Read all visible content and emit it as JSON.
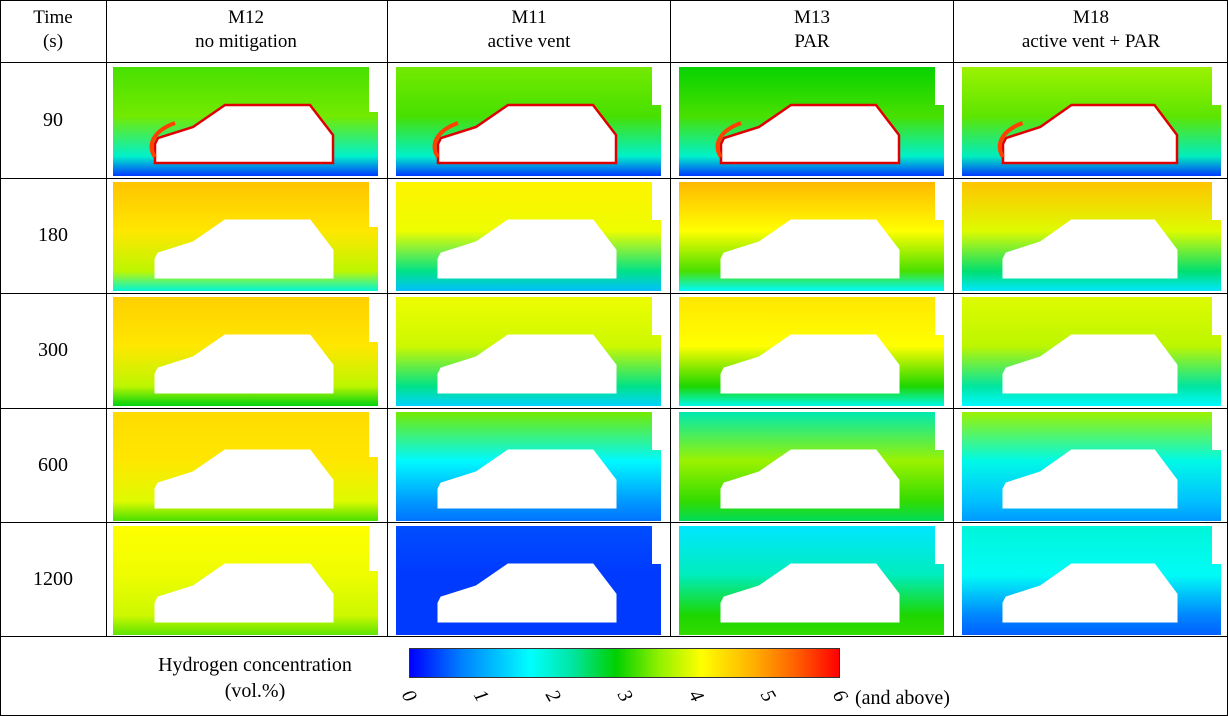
{
  "columns": [
    {
      "id": "time",
      "line1": "Time",
      "line2": "(s)"
    },
    {
      "id": "m12",
      "line1": "M12",
      "line2": "no mitigation"
    },
    {
      "id": "m11",
      "line1": "M11",
      "line2": "active vent"
    },
    {
      "id": "m13",
      "line1": "M13",
      "line2": "PAR"
    },
    {
      "id": "m18",
      "line1": "M18",
      "line2": "active vent + PAR"
    }
  ],
  "rows": [
    {
      "time": "90",
      "levels": [
        {
          "top": 3.0,
          "mid": 3.2,
          "bot": 1.7,
          "floor": 0.3,
          "plume": true
        },
        {
          "top": 3.2,
          "mid": 3.0,
          "bot": 1.7,
          "floor": 0.3,
          "plume": true
        },
        {
          "top": 2.7,
          "mid": 3.0,
          "bot": 1.7,
          "floor": 0.3,
          "plume": true
        },
        {
          "top": 3.4,
          "mid": 3.1,
          "bot": 1.8,
          "floor": 0.3,
          "plume": true
        }
      ]
    },
    {
      "time": "180",
      "levels": [
        {
          "top": 4.5,
          "mid": 4.2,
          "bot": 3.6,
          "floor": 1.6
        },
        {
          "top": 4.1,
          "mid": 3.9,
          "bot": 2.1,
          "floor": 1.0
        },
        {
          "top": 4.6,
          "mid": 4.0,
          "bot": 3.0,
          "floor": 1.3
        },
        {
          "top": 4.5,
          "mid": 3.8,
          "bot": 2.2,
          "floor": 1.2
        }
      ]
    },
    {
      "time": "300",
      "levels": [
        {
          "top": 4.4,
          "mid": 4.2,
          "bot": 3.6,
          "floor": 2.6
        },
        {
          "top": 3.9,
          "mid": 3.7,
          "bot": 2.1,
          "floor": 1.1
        },
        {
          "top": 4.2,
          "mid": 4.0,
          "bot": 2.8,
          "floor": 1.5
        },
        {
          "top": 3.8,
          "mid": 3.6,
          "bot": 2.0,
          "floor": 1.3
        }
      ]
    },
    {
      "time": "600",
      "levels": [
        {
          "top": 4.3,
          "mid": 4.2,
          "bot": 3.8,
          "floor": 3.0
        },
        {
          "top": 3.2,
          "mid": 1.3,
          "bot": 0.8,
          "floor": 0.6
        },
        {
          "top": 1.9,
          "mid": 3.4,
          "bot": 2.9,
          "floor": 2.3
        },
        {
          "top": 3.4,
          "mid": 1.5,
          "bot": 1.0,
          "floor": 0.8
        }
      ]
    },
    {
      "time": "1200",
      "levels": [
        {
          "top": 4.0,
          "mid": 3.9,
          "bot": 3.7,
          "floor": 3.1
        },
        {
          "top": 0.4,
          "mid": 0.3,
          "bot": 0.3,
          "floor": 0.3
        },
        {
          "top": 1.2,
          "mid": 1.8,
          "bot": 2.8,
          "floor": 2.9
        },
        {
          "top": 1.6,
          "mid": 1.4,
          "bot": 0.7,
          "floor": 0.5
        }
      ]
    }
  ],
  "legend": {
    "title_line1": "Hydrogen concentration",
    "title_line2": "(vol.%)",
    "ticks": [
      "0",
      "1",
      "2",
      "3",
      "4",
      "5",
      "6"
    ],
    "suffix": "(and above)",
    "min": 0,
    "max": 6
  },
  "colormap": [
    "#0000ff",
    "#0080ff",
    "#00ffff",
    "#00e5a0",
    "#00d000",
    "#90f000",
    "#ffff00",
    "#ffb000",
    "#ff6000",
    "#ff0000"
  ]
}
